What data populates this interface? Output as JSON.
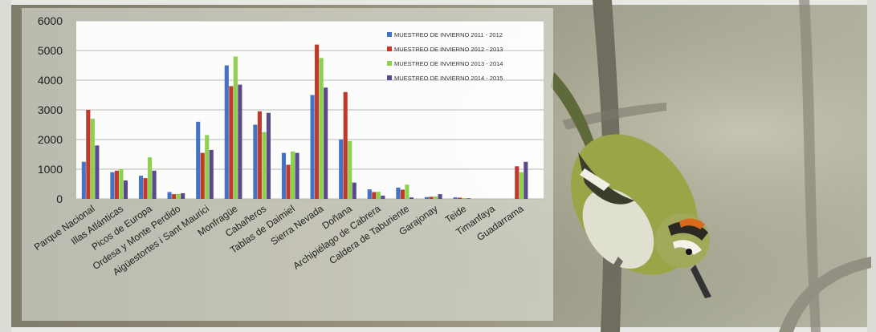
{
  "chart_data": {
    "type": "bar",
    "title": "",
    "xlabel": "",
    "ylabel": "",
    "ylim": [
      0,
      6000
    ],
    "yticks": [
      0,
      1000,
      2000,
      3000,
      4000,
      5000,
      6000
    ],
    "grid": true,
    "legend_position": "top-right",
    "categories": [
      "Parque Nacional",
      "Illas Atlánticas",
      "Picos de Europa",
      "Ordesa y Monte Perdido",
      "Aigüestortes i Sant Maurici",
      "Monfragüe",
      "Cabañeros",
      "Tablas de Daimiel",
      "Sierra Nevada",
      "Doñana",
      "Archipiélago de Cabrera",
      "Caldera de Taburiente",
      "Garajonay",
      "Teide",
      "Timanfaya",
      "Guadarrama"
    ],
    "series": [
      {
        "name": "MUESTREO DE INVIERNO 2011 - 2012",
        "color": "#4472c4",
        "values": [
          1250,
          900,
          780,
          230,
          2600,
          4500,
          2500,
          1550,
          3500,
          2000,
          320,
          380,
          60,
          50,
          0,
          0
        ]
      },
      {
        "name": "MUESTREO DE INVIERNO 2012 - 2013",
        "color": "#c0392b",
        "values": [
          3000,
          950,
          700,
          160,
          1550,
          3800,
          2950,
          1150,
          5200,
          3600,
          230,
          310,
          70,
          40,
          0,
          1100
        ]
      },
      {
        "name": "MUESTREO DE INVIERNO 2013 - 2014",
        "color": "#8ed14f",
        "values": [
          2700,
          1000,
          1400,
          170,
          2150,
          4800,
          2250,
          1600,
          4750,
          1950,
          240,
          480,
          80,
          30,
          0,
          900
        ]
      },
      {
        "name": "MUESTREO DE INVIERNO 2014 - 2015",
        "color": "#5b4a8b",
        "values": [
          1800,
          620,
          950,
          190,
          1650,
          3850,
          2900,
          1550,
          3750,
          550,
          110,
          50,
          160,
          20,
          0,
          1250
        ]
      }
    ]
  }
}
